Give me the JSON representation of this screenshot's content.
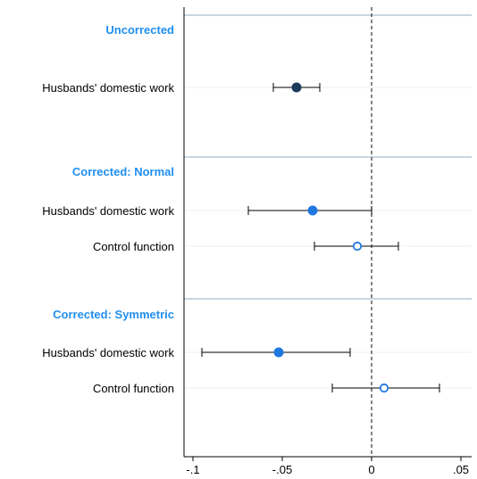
{
  "chart_data": {
    "type": "scatter",
    "subtype": "coefficient-plot-with-confidence-intervals",
    "xlim": [
      -0.105,
      0.056
    ],
    "x_ticks": [
      -0.1,
      -0.05,
      0,
      0.05
    ],
    "x_tick_labels": [
      "-.1",
      "-.05",
      "0",
      ".05"
    ],
    "reference_line": {
      "x": 0,
      "style": "dashed"
    },
    "grid": true,
    "groups": [
      {
        "title": "Uncorrected",
        "rows": [
          {
            "label": "Husbands' domestic work",
            "estimate": -0.042,
            "ci": [
              -0.055,
              -0.029
            ],
            "marker": "filled",
            "color": "#1a3b5c"
          }
        ]
      },
      {
        "title": "Corrected: Normal",
        "rows": [
          {
            "label": "Husbands' domestic work",
            "estimate": -0.033,
            "ci": [
              -0.069,
              0.0
            ],
            "marker": "filled",
            "color": "#1f78e0"
          },
          {
            "label": "Control function",
            "estimate": -0.008,
            "ci": [
              -0.032,
              0.015
            ],
            "marker": "hollow",
            "color": "#1f78e0"
          }
        ]
      },
      {
        "title": "Corrected: Symmetric",
        "rows": [
          {
            "label": "Husbands' domestic work",
            "estimate": -0.052,
            "ci": [
              -0.095,
              -0.012
            ],
            "marker": "filled",
            "color": "#1f78e0"
          },
          {
            "label": "Control function",
            "estimate": 0.007,
            "ci": [
              -0.022,
              0.038
            ],
            "marker": "hollow",
            "color": "#1f78e0"
          }
        ]
      }
    ],
    "colors": {
      "group_title": "#1f8ef1",
      "separator": "#b7c9d8",
      "gridline": "#eef0f2",
      "axis": "#000000",
      "ci_line": "#000000",
      "reference_line": "#333333"
    }
  }
}
